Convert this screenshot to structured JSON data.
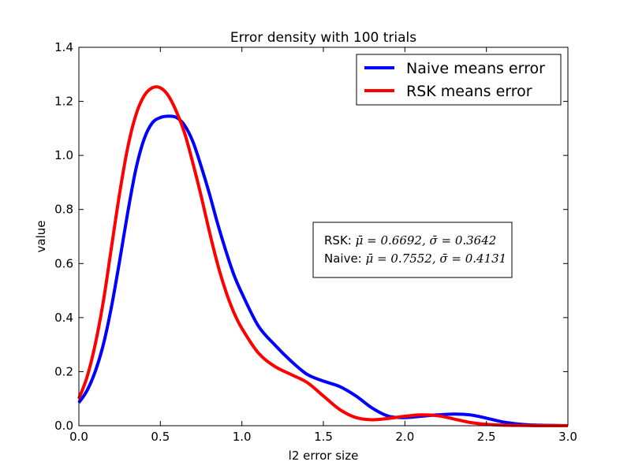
{
  "chart_data": {
    "type": "line",
    "title": "Error density with 100 trials",
    "xlabel": "l2 error size",
    "ylabel": "value",
    "xlim": [
      0.0,
      3.0
    ],
    "ylim": [
      0.0,
      1.4
    ],
    "xticks": [
      "0.0",
      "0.5",
      "1.0",
      "1.5",
      "2.0",
      "2.5",
      "3.0"
    ],
    "yticks": [
      "0.0",
      "0.2",
      "0.4",
      "0.6",
      "0.8",
      "1.0",
      "1.2",
      "1.4"
    ],
    "xtick_values": [
      0.0,
      0.5,
      1.0,
      1.5,
      2.0,
      2.5,
      3.0
    ],
    "ytick_values": [
      0.0,
      0.2,
      0.4,
      0.6,
      0.8,
      1.0,
      1.2,
      1.4
    ],
    "grid": false,
    "legend_position": "top-right",
    "series": [
      {
        "name": "Naive means error",
        "color": "#0000ff",
        "x": [
          0.0,
          0.05,
          0.1,
          0.15,
          0.2,
          0.25,
          0.3,
          0.35,
          0.4,
          0.45,
          0.5,
          0.55,
          0.6,
          0.65,
          0.7,
          0.75,
          0.8,
          0.85,
          0.9,
          0.95,
          1.0,
          1.1,
          1.2,
          1.3,
          1.4,
          1.5,
          1.6,
          1.7,
          1.8,
          1.9,
          2.0,
          2.1,
          2.2,
          2.3,
          2.4,
          2.5,
          2.6,
          2.7,
          2.8,
          2.9,
          3.0
        ],
        "y": [
          0.085,
          0.13,
          0.2,
          0.3,
          0.44,
          0.61,
          0.79,
          0.95,
          1.06,
          1.12,
          1.14,
          1.145,
          1.14,
          1.11,
          1.05,
          0.96,
          0.86,
          0.75,
          0.65,
          0.56,
          0.49,
          0.37,
          0.3,
          0.24,
          0.19,
          0.165,
          0.145,
          0.11,
          0.065,
          0.035,
          0.03,
          0.035,
          0.04,
          0.043,
          0.04,
          0.028,
          0.014,
          0.006,
          0.002,
          0.001,
          0.0
        ]
      },
      {
        "name": "RSK means error",
        "color": "#ff0000",
        "x": [
          0.0,
          0.05,
          0.1,
          0.15,
          0.2,
          0.25,
          0.3,
          0.35,
          0.4,
          0.45,
          0.5,
          0.55,
          0.6,
          0.65,
          0.7,
          0.75,
          0.8,
          0.85,
          0.9,
          0.95,
          1.0,
          1.1,
          1.2,
          1.3,
          1.4,
          1.5,
          1.6,
          1.7,
          1.8,
          1.9,
          2.0,
          2.1,
          2.2,
          2.3,
          2.4,
          2.5,
          2.6,
          2.7,
          2.8,
          2.9,
          3.0
        ],
        "y": [
          0.1,
          0.18,
          0.3,
          0.46,
          0.66,
          0.86,
          1.03,
          1.15,
          1.22,
          1.25,
          1.25,
          1.22,
          1.16,
          1.08,
          0.97,
          0.85,
          0.72,
          0.6,
          0.5,
          0.42,
          0.36,
          0.27,
          0.22,
          0.19,
          0.16,
          0.11,
          0.06,
          0.03,
          0.022,
          0.027,
          0.035,
          0.04,
          0.037,
          0.025,
          0.012,
          0.005,
          0.002,
          0.001,
          0.0,
          0.0,
          0.0
        ]
      }
    ],
    "annotation": {
      "line1_prefix": "RSK: ",
      "line1_math": "μ̄ = 0.6692, σ̄ = 0.3642",
      "line2_prefix": "Naive: ",
      "line2_math": "μ̄ = 0.7552, σ̄ = 0.4131"
    }
  }
}
